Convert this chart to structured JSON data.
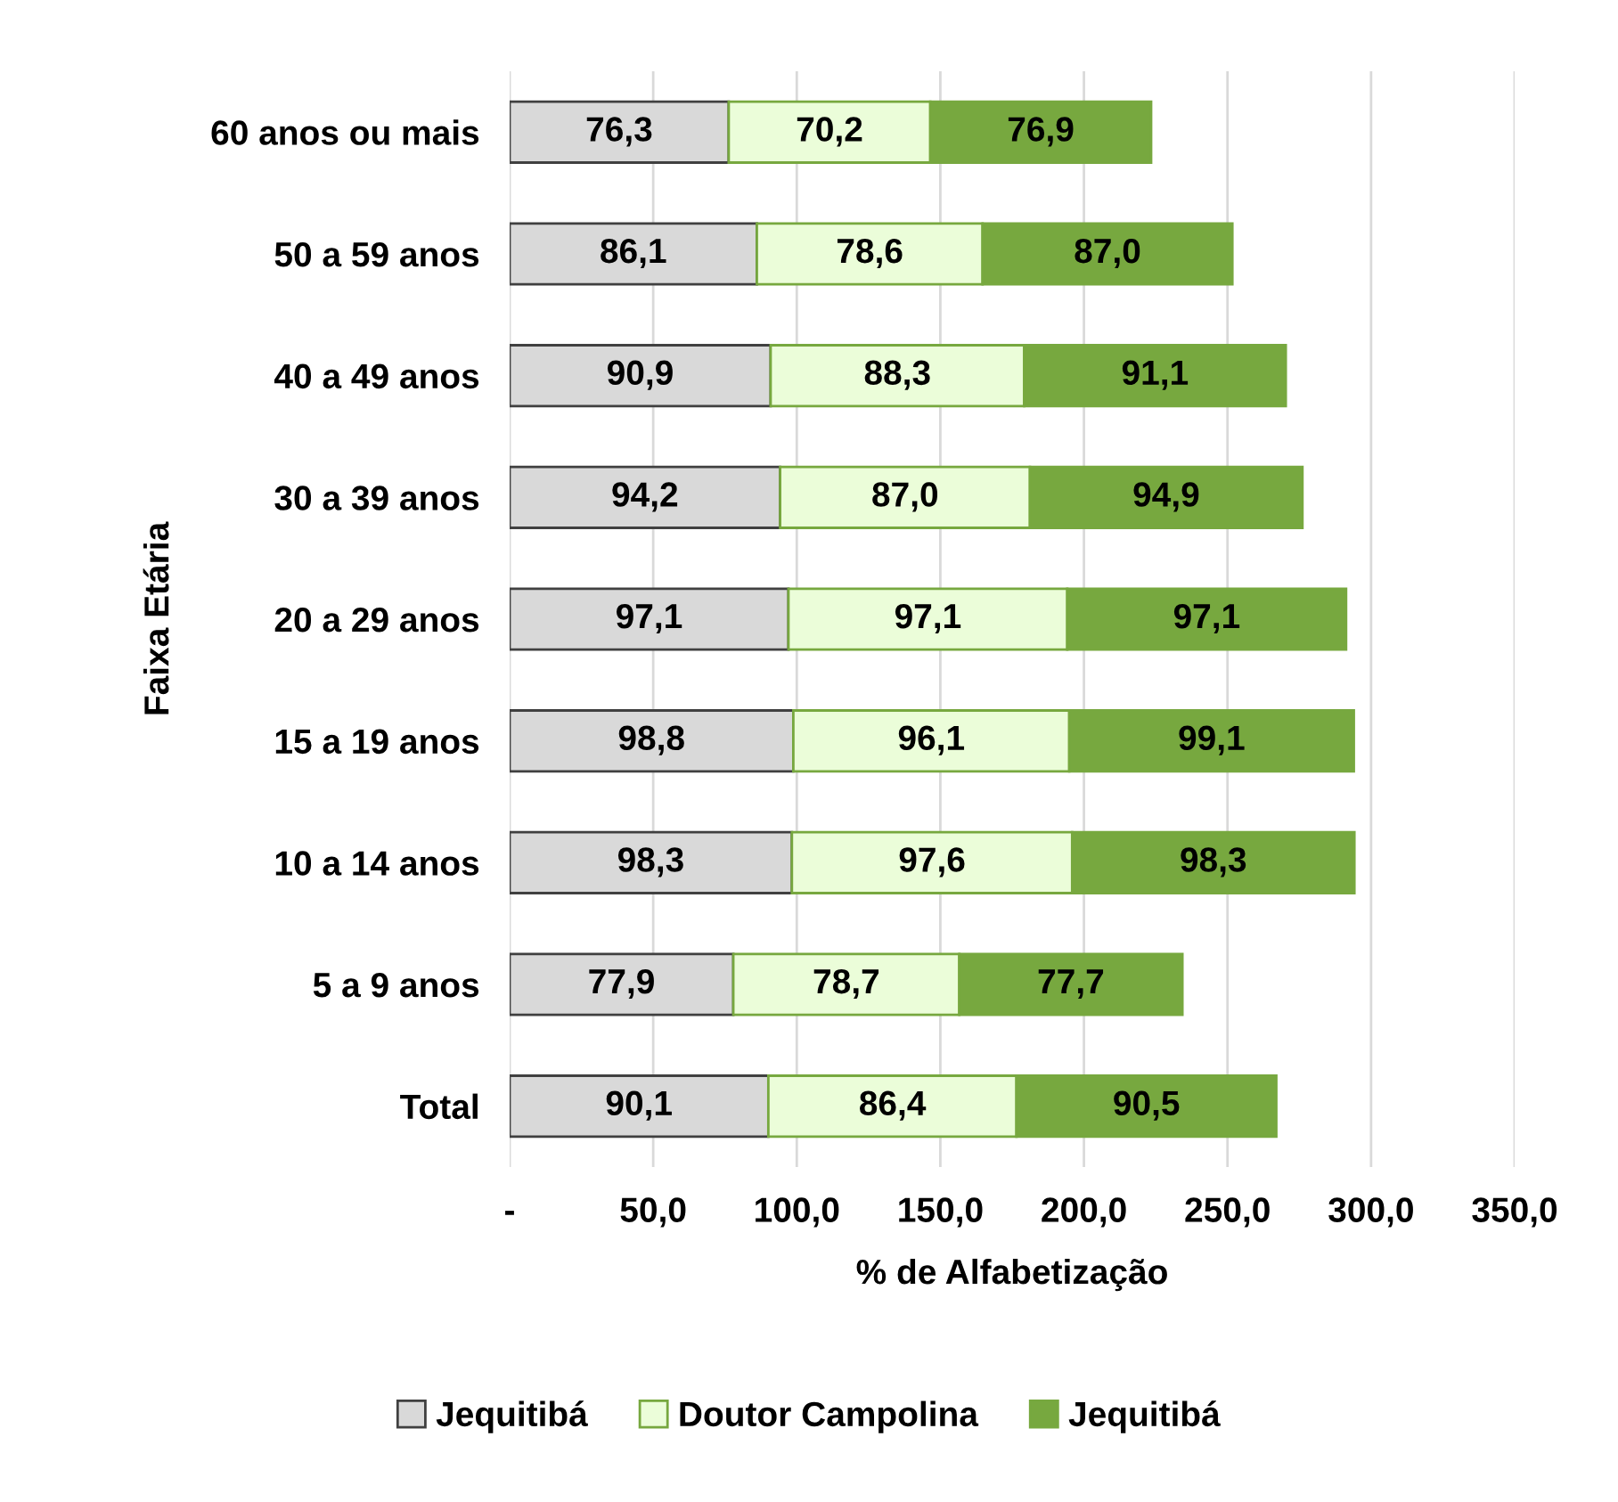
{
  "chart_data": {
    "type": "bar",
    "orientation": "horizontal",
    "stacked": true,
    "xlabel": "% de Alfabetização",
    "ylabel": "Faixa Etária",
    "categories": [
      "60 anos ou mais",
      "50 a 59 anos",
      "40 a 49 anos",
      "30 a 39 anos",
      "20 a 29 anos",
      "15 a 19 anos",
      "10 a 14 anos",
      "5 a 9 anos",
      "Total"
    ],
    "series": [
      {
        "name": "Jequitibá",
        "color": "#d9d9d9",
        "values": [
          76.3,
          86.1,
          90.9,
          94.2,
          97.1,
          98.8,
          98.3,
          77.9,
          90.1
        ],
        "value_labels": [
          "76,3",
          "86,1",
          "90,9",
          "94,2",
          "97,1",
          "98,8",
          "98,3",
          "77,9",
          "90,1"
        ]
      },
      {
        "name": "Doutor Campolina",
        "color": "#ebfdd9",
        "values": [
          70.2,
          78.6,
          88.3,
          87.0,
          97.1,
          96.1,
          97.6,
          78.7,
          86.4
        ],
        "value_labels": [
          "70,2",
          "78,6",
          "88,3",
          "87,0",
          "97,1",
          "96,1",
          "97,6",
          "78,7",
          "86,4"
        ]
      },
      {
        "name": "Jequitibá",
        "color": "#77a83f",
        "values": [
          76.9,
          87.0,
          91.1,
          94.9,
          97.1,
          99.1,
          98.3,
          77.7,
          90.5
        ],
        "value_labels": [
          "76,9",
          "87,0",
          "91,1",
          "94,9",
          "97,1",
          "99,1",
          "98,3",
          "77,7",
          "90,5"
        ]
      }
    ],
    "xlim": [
      0,
      350
    ],
    "xticks": [
      {
        "value": 0,
        "label": "-"
      },
      {
        "value": 50,
        "label": "50,0"
      },
      {
        "value": 100,
        "label": "100,0"
      },
      {
        "value": 150,
        "label": "150,0"
      },
      {
        "value": 200,
        "label": "200,0"
      },
      {
        "value": 250,
        "label": "250,0"
      },
      {
        "value": 300,
        "label": "300,0"
      },
      {
        "value": 350,
        "label": "350,0"
      }
    ],
    "grid": "x",
    "legend": "bottom"
  }
}
